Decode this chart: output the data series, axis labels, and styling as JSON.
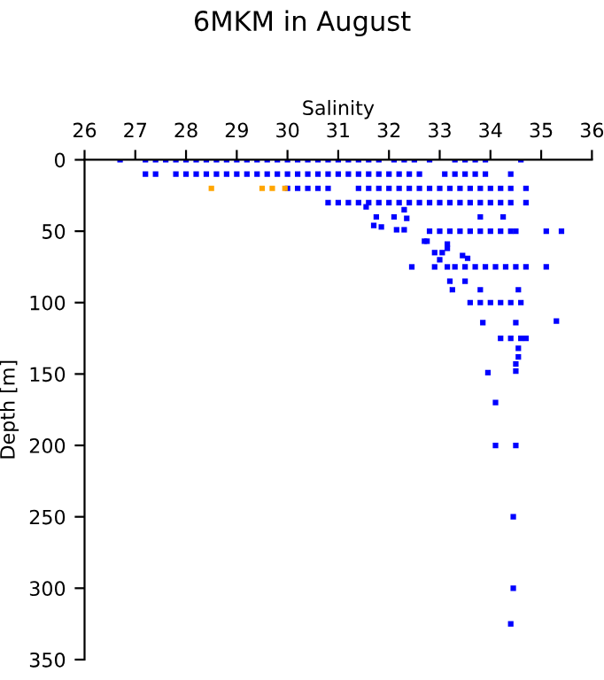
{
  "chart_data": {
    "type": "scatter",
    "title": "6MKM in August",
    "xlabel": "Salinity",
    "ylabel": "Depth [m]",
    "xlim": [
      26,
      36
    ],
    "xticks": [
      26,
      27,
      28,
      29,
      30,
      31,
      32,
      33,
      34,
      35,
      36
    ],
    "ylim": [
      350,
      0
    ],
    "yticks": [
      0,
      50,
      100,
      150,
      200,
      250,
      300,
      350
    ],
    "grid": false,
    "legend": false,
    "marker": "square",
    "series": [
      {
        "color": "#0000ff",
        "x": [
          26.7,
          27.2,
          27.4,
          27.6,
          27.8,
          28.0,
          28.2,
          28.4,
          28.6,
          28.8,
          29.0,
          29.2,
          29.4,
          29.6,
          29.8,
          30.0,
          30.2,
          30.4,
          30.6,
          30.8,
          31.0,
          31.2,
          31.4,
          31.6,
          31.8,
          32.1,
          32.3,
          32.5,
          32.8,
          33.3,
          33.5,
          33.7,
          33.9,
          34.6,
          27.2,
          27.4,
          27.8,
          28.0,
          28.2,
          28.4,
          28.6,
          28.8,
          29.0,
          29.2,
          29.4,
          29.6,
          29.8,
          30.0,
          30.2,
          30.4,
          30.6,
          30.8,
          31.0,
          31.2,
          31.4,
          31.6,
          31.8,
          32.0,
          32.2,
          32.4,
          32.6,
          33.1,
          33.3,
          33.5,
          33.7,
          33.9,
          34.4,
          30.0,
          30.2,
          30.4,
          30.6,
          30.8,
          31.4,
          31.6,
          31.8,
          32.0,
          32.2,
          32.4,
          32.6,
          32.8,
          33.0,
          33.2,
          33.4,
          33.6,
          33.8,
          34.0,
          34.2,
          34.4,
          34.7,
          30.8,
          31.0,
          31.2,
          31.4,
          31.6,
          31.8,
          32.0,
          32.2,
          32.4,
          32.6,
          32.8,
          33.0,
          33.2,
          33.4,
          33.6,
          33.8,
          34.0,
          34.2,
          34.4,
          34.7,
          31.55,
          32.3,
          31.75,
          32.1,
          32.35,
          33.8,
          34.25,
          31.7,
          31.85,
          32.15,
          32.3,
          32.7,
          33.15,
          32.8,
          33.0,
          33.2,
          33.4,
          33.6,
          33.8,
          34.0,
          34.2,
          34.4,
          34.5,
          35.1,
          35.4,
          32.75,
          33.15,
          32.9,
          33.05,
          33.45,
          33.55,
          33.0,
          32.45,
          32.9,
          33.15,
          33.3,
          33.5,
          33.7,
          33.9,
          34.1,
          34.3,
          34.5,
          34.7,
          35.1,
          33.2,
          33.5,
          33.25,
          33.8,
          34.55,
          33.6,
          33.8,
          34.0,
          34.2,
          34.4,
          34.6,
          33.85,
          34.5,
          35.3,
          34.2,
          34.4,
          34.6,
          34.7,
          34.55,
          34.55,
          34.5,
          33.95,
          34.5,
          34.1,
          34.1,
          34.5,
          34.45,
          34.45,
          34.4
        ],
        "values": [
          0,
          0,
          0,
          0,
          0,
          0,
          0,
          0,
          0,
          0,
          0,
          0,
          0,
          0,
          0,
          0,
          0,
          0,
          0,
          0,
          0,
          0,
          0,
          0,
          0,
          0,
          0,
          0,
          0,
          0,
          0,
          0,
          0,
          0,
          10,
          10,
          10,
          10,
          10,
          10,
          10,
          10,
          10,
          10,
          10,
          10,
          10,
          10,
          10,
          10,
          10,
          10,
          10,
          10,
          10,
          10,
          10,
          10,
          10,
          10,
          10,
          10,
          10,
          10,
          10,
          10,
          10,
          20,
          20,
          20,
          20,
          20,
          20,
          20,
          20,
          20,
          20,
          20,
          20,
          20,
          20,
          20,
          20,
          20,
          20,
          20,
          20,
          20,
          20,
          30,
          30,
          30,
          30,
          30,
          30,
          30,
          30,
          30,
          30,
          30,
          30,
          30,
          30,
          30,
          30,
          30,
          30,
          30,
          30,
          33,
          35,
          40,
          40,
          41,
          40,
          40,
          46,
          47,
          49,
          49,
          57,
          59,
          50,
          50,
          50,
          50,
          50,
          50,
          50,
          50,
          50,
          50,
          50,
          50,
          57,
          62,
          65,
          65,
          67,
          69,
          70,
          75,
          75,
          75,
          75,
          75,
          75,
          75,
          75,
          75,
          75,
          75,
          75,
          85,
          85,
          91,
          91,
          91,
          100,
          100,
          100,
          100,
          100,
          100,
          114,
          114,
          113,
          125,
          125,
          125,
          125,
          132,
          138,
          143,
          149,
          148,
          170,
          200,
          200,
          250,
          300,
          325
        ]
      },
      {
        "color": "#ffa500",
        "x": [
          28.5,
          29.5,
          29.7,
          29.95
        ],
        "values": [
          20,
          20,
          20,
          20
        ]
      }
    ]
  }
}
